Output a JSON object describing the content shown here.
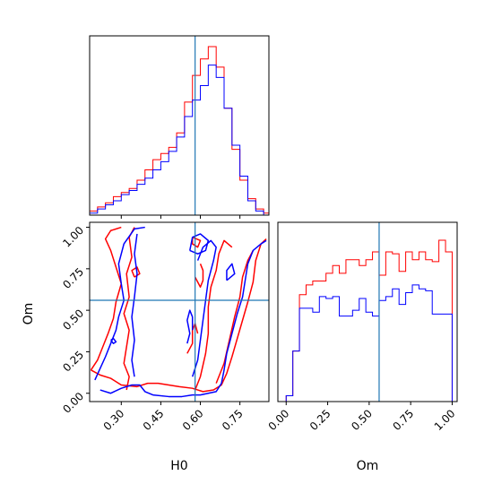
{
  "chart_data": {
    "type": "corner",
    "colors": {
      "series_a": "#ff0000",
      "series_b": "#0000ff",
      "truth": "#1f77b4"
    },
    "truth": {
      "H0": 0.58,
      "Om": 0.56
    },
    "axes": {
      "H0": {
        "label": "H0",
        "ticks": [
          "0.30",
          "0.45",
          "0.60",
          "0.75"
        ],
        "range": [
          0.18,
          0.86
        ]
      },
      "Om": {
        "label": "Om",
        "ticks": [
          "0.00",
          "0.25",
          "0.50",
          "0.75",
          "1.00"
        ],
        "range": [
          -0.05,
          1.03
        ]
      }
    },
    "hist_H0": {
      "bins": [
        0.18,
        0.21,
        0.24,
        0.27,
        0.3,
        0.33,
        0.36,
        0.39,
        0.42,
        0.45,
        0.48,
        0.51,
        0.54,
        0.57,
        0.6,
        0.63,
        0.66,
        0.69,
        0.72,
        0.75,
        0.78,
        0.81,
        0.84,
        0.86
      ],
      "series": [
        {
          "color": "red",
          "values": [
            2,
            4,
            6,
            9,
            11,
            13,
            17,
            22,
            27,
            30,
            33,
            40,
            55,
            68,
            76,
            82,
            72,
            52,
            32,
            17,
            8,
            3,
            1
          ]
        },
        {
          "color": "blue",
          "values": [
            1,
            3,
            5,
            7,
            10,
            12,
            15,
            18,
            22,
            26,
            31,
            38,
            48,
            56,
            63,
            73,
            67,
            52,
            34,
            19,
            7,
            2,
            0
          ]
        }
      ]
    },
    "hist_Om": {
      "bins": [
        0.0,
        0.04,
        0.08,
        0.12,
        0.16,
        0.2,
        0.24,
        0.28,
        0.32,
        0.36,
        0.4,
        0.44,
        0.48,
        0.52,
        0.56,
        0.6,
        0.64,
        0.68,
        0.72,
        0.76,
        0.8,
        0.84,
        0.88,
        0.92,
        0.96,
        1.0
      ],
      "series": [
        {
          "color": "red",
          "values": [
            3,
            26,
            55,
            60,
            62,
            62,
            66,
            70,
            66,
            73,
            73,
            70,
            73,
            77,
            65,
            77,
            76,
            67,
            77,
            73,
            77,
            73,
            72,
            83,
            77
          ]
        },
        {
          "color": "blue",
          "values": [
            3,
            26,
            48,
            48,
            46,
            54,
            53,
            54,
            44,
            44,
            47,
            53,
            46,
            44,
            52,
            54,
            58,
            50,
            56,
            60,
            58,
            57,
            45,
            45,
            45
          ]
        }
      ]
    },
    "contours": [
      {
        "color": "red",
        "paths": [
          [
            [
              0.185,
              0.14
            ],
            [
              0.22,
              0.11
            ],
            [
              0.26,
              0.09
            ],
            [
              0.3,
              0.05
            ],
            [
              0.36,
              0.04
            ],
            [
              0.4,
              0.06
            ],
            [
              0.44,
              0.06
            ],
            [
              0.48,
              0.05
            ],
            [
              0.52,
              0.04
            ],
            [
              0.57,
              0.03
            ],
            [
              0.61,
              0.01
            ],
            [
              0.65,
              0.02
            ],
            [
              0.68,
              0.05
            ],
            [
              0.7,
              0.12
            ],
            [
              0.72,
              0.22
            ],
            [
              0.74,
              0.33
            ],
            [
              0.76,
              0.44
            ],
            [
              0.78,
              0.55
            ],
            [
              0.8,
              0.67
            ],
            [
              0.81,
              0.8
            ],
            [
              0.83,
              0.9
            ],
            [
              0.85,
              0.93
            ]
          ],
          [
            [
              0.185,
              0.14
            ],
            [
              0.21,
              0.2
            ],
            [
              0.23,
              0.28
            ],
            [
              0.25,
              0.36
            ],
            [
              0.27,
              0.45
            ],
            [
              0.28,
              0.55
            ],
            [
              0.3,
              0.66
            ],
            [
              0.28,
              0.76
            ],
            [
              0.26,
              0.86
            ],
            [
              0.24,
              0.93
            ],
            [
              0.26,
              0.98
            ],
            [
              0.3,
              1.0
            ]
          ],
          [
            [
              0.32,
              0.02
            ],
            [
              0.33,
              0.1
            ],
            [
              0.31,
              0.18
            ],
            [
              0.32,
              0.28
            ],
            [
              0.33,
              0.38
            ],
            [
              0.31,
              0.48
            ],
            [
              0.33,
              0.58
            ],
            [
              0.32,
              0.72
            ],
            [
              0.34,
              0.82
            ],
            [
              0.33,
              0.94
            ],
            [
              0.35,
              1.0
            ]
          ],
          [
            [
              0.58,
              0.02
            ],
            [
              0.6,
              0.1
            ],
            [
              0.62,
              0.24
            ],
            [
              0.63,
              0.36
            ],
            [
              0.63,
              0.52
            ],
            [
              0.64,
              0.64
            ],
            [
              0.66,
              0.74
            ],
            [
              0.67,
              0.84
            ],
            [
              0.69,
              0.92
            ],
            [
              0.72,
              0.88
            ]
          ],
          [
            [
              0.66,
              0.06
            ],
            [
              0.69,
              0.18
            ],
            [
              0.71,
              0.32
            ],
            [
              0.73,
              0.46
            ],
            [
              0.75,
              0.58
            ],
            [
              0.76,
              0.7
            ],
            [
              0.78,
              0.8
            ],
            [
              0.8,
              0.86
            ]
          ],
          [
            [
              0.55,
              0.24
            ],
            [
              0.57,
              0.3
            ],
            [
              0.57,
              0.38
            ],
            [
              0.58,
              0.42
            ],
            [
              0.59,
              0.36
            ]
          ],
          [
            [
              0.57,
              0.94
            ],
            [
              0.6,
              0.92
            ],
            [
              0.59,
              0.88
            ],
            [
              0.57,
              0.9
            ],
            [
              0.57,
              0.94
            ]
          ],
          [
            [
              0.58,
              0.7
            ],
            [
              0.6,
              0.64
            ],
            [
              0.61,
              0.68
            ],
            [
              0.61,
              0.74
            ],
            [
              0.6,
              0.78
            ]
          ],
          [
            [
              0.35,
              0.7
            ],
            [
              0.37,
              0.72
            ],
            [
              0.36,
              0.76
            ],
            [
              0.34,
              0.74
            ],
            [
              0.35,
              0.7
            ]
          ]
        ]
      },
      {
        "color": "blue",
        "paths": [
          [
            [
              0.2,
              0.08
            ],
            [
              0.22,
              0.15
            ],
            [
              0.24,
              0.22
            ],
            [
              0.26,
              0.3
            ],
            [
              0.28,
              0.38
            ],
            [
              0.29,
              0.46
            ],
            [
              0.31,
              0.56
            ],
            [
              0.3,
              0.66
            ],
            [
              0.29,
              0.78
            ],
            [
              0.31,
              0.9
            ],
            [
              0.35,
              0.99
            ],
            [
              0.39,
              1.0
            ]
          ],
          [
            [
              0.22,
              0.02
            ],
            [
              0.26,
              0.0
            ],
            [
              0.3,
              0.03
            ],
            [
              0.34,
              0.05
            ],
            [
              0.37,
              0.05
            ],
            [
              0.39,
              0.01
            ],
            [
              0.42,
              -0.01
            ],
            [
              0.48,
              -0.02
            ],
            [
              0.53,
              -0.02
            ],
            [
              0.57,
              -0.01
            ],
            [
              0.6,
              -0.01
            ],
            [
              0.63,
              0.0
            ],
            [
              0.66,
              0.01
            ],
            [
              0.68,
              0.06
            ],
            [
              0.69,
              0.14
            ],
            [
              0.7,
              0.24
            ],
            [
              0.72,
              0.36
            ],
            [
              0.74,
              0.48
            ],
            [
              0.76,
              0.58
            ],
            [
              0.77,
              0.68
            ],
            [
              0.78,
              0.78
            ],
            [
              0.8,
              0.86
            ],
            [
              0.83,
              0.9
            ],
            [
              0.85,
              0.92
            ]
          ],
          [
            [
              0.57,
              0.1
            ],
            [
              0.59,
              0.2
            ],
            [
              0.6,
              0.32
            ],
            [
              0.61,
              0.44
            ],
            [
              0.62,
              0.56
            ],
            [
              0.63,
              0.68
            ],
            [
              0.65,
              0.8
            ],
            [
              0.66,
              0.88
            ],
            [
              0.64,
              0.92
            ],
            [
              0.61,
              0.88
            ],
            [
              0.59,
              0.8
            ]
          ],
          [
            [
              0.35,
              0.1
            ],
            [
              0.34,
              0.2
            ],
            [
              0.35,
              0.32
            ],
            [
              0.34,
              0.46
            ],
            [
              0.35,
              0.58
            ],
            [
              0.36,
              0.72
            ],
            [
              0.35,
              0.84
            ],
            [
              0.36,
              0.96
            ]
          ],
          [
            [
              0.55,
              0.3
            ],
            [
              0.56,
              0.36
            ],
            [
              0.55,
              0.44
            ],
            [
              0.56,
              0.5
            ],
            [
              0.57,
              0.46
            ],
            [
              0.57,
              0.38
            ]
          ],
          [
            [
              0.56,
              0.86
            ],
            [
              0.59,
              0.84
            ],
            [
              0.62,
              0.86
            ],
            [
              0.63,
              0.92
            ],
            [
              0.6,
              0.96
            ],
            [
              0.57,
              0.94
            ],
            [
              0.56,
              0.86
            ]
          ],
          [
            [
              0.26,
              0.32
            ],
            [
              0.27,
              0.3
            ],
            [
              0.28,
              0.31
            ],
            [
              0.27,
              0.33
            ],
            [
              0.26,
              0.32
            ]
          ],
          [
            [
              0.7,
              0.68
            ],
            [
              0.73,
              0.72
            ],
            [
              0.72,
              0.78
            ],
            [
              0.7,
              0.74
            ],
            [
              0.7,
              0.68
            ]
          ]
        ]
      }
    ]
  }
}
